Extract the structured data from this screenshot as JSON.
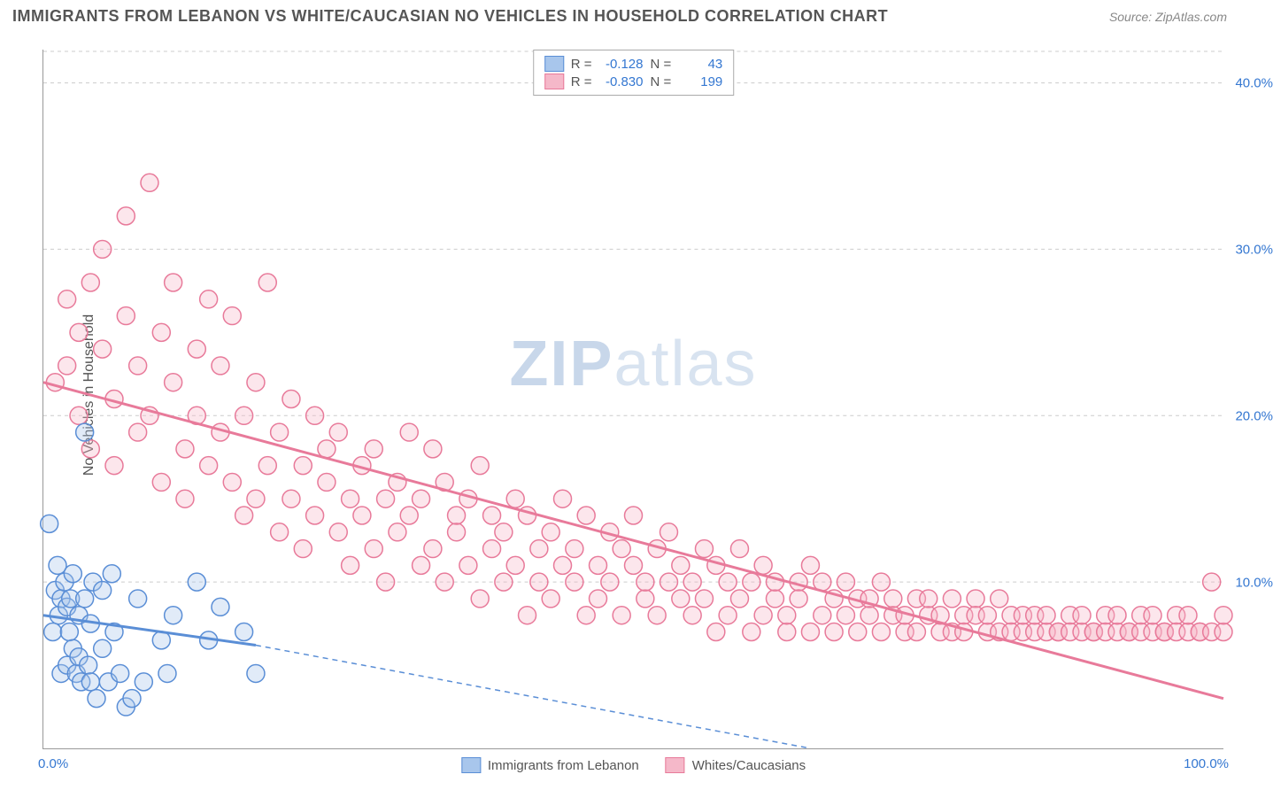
{
  "title": "IMMIGRANTS FROM LEBANON VS WHITE/CAUCASIAN NO VEHICLES IN HOUSEHOLD CORRELATION CHART",
  "source": "Source: ZipAtlas.com",
  "watermark_zip": "ZIP",
  "watermark_atlas": "atlas",
  "chart": {
    "type": "scatter-with-trendlines",
    "ylabel": "No Vehicles in Household",
    "xlim": [
      0,
      100
    ],
    "ylim": [
      0,
      42
    ],
    "y_ticks": [
      10,
      20,
      30,
      40
    ],
    "y_tick_labels": [
      "10.0%",
      "20.0%",
      "30.0%",
      "40.0%"
    ],
    "x_tick_labels": {
      "left": "0.0%",
      "right": "100.0%"
    },
    "grid_color": "#cccccc",
    "background_color": "#ffffff",
    "axis_color": "#999999",
    "tick_label_color": "#3477d1",
    "label_color": "#555555",
    "marker_radius": 10,
    "marker_stroke_width": 1.5,
    "marker_fill_opacity": 0.35,
    "trendline_width": 3,
    "series": {
      "lebanon": {
        "label": "Immigrants from Lebanon",
        "color_stroke": "#5a8ed6",
        "color_fill": "#a8c6ec",
        "R": "-0.128",
        "N": "43",
        "trend_start": {
          "x": 0,
          "y": 8.0
        },
        "trend_solid_end": {
          "x": 18,
          "y": 6.2
        },
        "trend_dash_end": {
          "x": 65,
          "y": 0
        },
        "points": [
          [
            0.5,
            13.5
          ],
          [
            0.8,
            7.0
          ],
          [
            1.0,
            9.5
          ],
          [
            1.2,
            11.0
          ],
          [
            1.3,
            8.0
          ],
          [
            1.5,
            9.0
          ],
          [
            1.5,
            4.5
          ],
          [
            1.8,
            10.0
          ],
          [
            2.0,
            8.5
          ],
          [
            2.0,
            5.0
          ],
          [
            2.2,
            7.0
          ],
          [
            2.3,
            9.0
          ],
          [
            2.5,
            6.0
          ],
          [
            2.5,
            10.5
          ],
          [
            2.8,
            4.5
          ],
          [
            3.0,
            5.5
          ],
          [
            3.0,
            8.0
          ],
          [
            3.2,
            4.0
          ],
          [
            3.5,
            19.0
          ],
          [
            3.5,
            9.0
          ],
          [
            3.8,
            5.0
          ],
          [
            4.0,
            7.5
          ],
          [
            4.0,
            4.0
          ],
          [
            4.2,
            10.0
          ],
          [
            4.5,
            3.0
          ],
          [
            5.0,
            6.0
          ],
          [
            5.0,
            9.5
          ],
          [
            5.5,
            4.0
          ],
          [
            5.8,
            10.5
          ],
          [
            6.0,
            7.0
          ],
          [
            6.5,
            4.5
          ],
          [
            7.0,
            2.5
          ],
          [
            7.5,
            3.0
          ],
          [
            8.0,
            9.0
          ],
          [
            8.5,
            4.0
          ],
          [
            10.0,
            6.5
          ],
          [
            10.5,
            4.5
          ],
          [
            11.0,
            8.0
          ],
          [
            13.0,
            10.0
          ],
          [
            14.0,
            6.5
          ],
          [
            15.0,
            8.5
          ],
          [
            17.0,
            7.0
          ],
          [
            18.0,
            4.5
          ]
        ]
      },
      "whites": {
        "label": "Whites/Caucasians",
        "color_stroke": "#e87a9a",
        "color_fill": "#f5b8c9",
        "R": "-0.830",
        "N": "199",
        "trend_start": {
          "x": 0,
          "y": 22.0
        },
        "trend_end": {
          "x": 100,
          "y": 3.0
        },
        "points": [
          [
            1,
            22
          ],
          [
            2,
            27
          ],
          [
            2,
            23
          ],
          [
            3,
            20
          ],
          [
            3,
            25
          ],
          [
            4,
            28
          ],
          [
            4,
            18
          ],
          [
            5,
            24
          ],
          [
            5,
            30
          ],
          [
            6,
            21
          ],
          [
            6,
            17
          ],
          [
            7,
            26
          ],
          [
            7,
            32
          ],
          [
            8,
            23
          ],
          [
            8,
            19
          ],
          [
            9,
            34
          ],
          [
            9,
            20
          ],
          [
            10,
            25
          ],
          [
            10,
            16
          ],
          [
            11,
            22
          ],
          [
            11,
            28
          ],
          [
            12,
            18
          ],
          [
            12,
            15
          ],
          [
            13,
            24
          ],
          [
            13,
            20
          ],
          [
            14,
            27
          ],
          [
            14,
            17
          ],
          [
            15,
            19
          ],
          [
            15,
            23
          ],
          [
            16,
            16
          ],
          [
            16,
            26
          ],
          [
            17,
            14
          ],
          [
            17,
            20
          ],
          [
            18,
            22
          ],
          [
            18,
            15
          ],
          [
            19,
            28
          ],
          [
            19,
            17
          ],
          [
            20,
            13
          ],
          [
            20,
            19
          ],
          [
            21,
            21
          ],
          [
            21,
            15
          ],
          [
            22,
            17
          ],
          [
            22,
            12
          ],
          [
            23,
            20
          ],
          [
            23,
            14
          ],
          [
            24,
            16
          ],
          [
            24,
            18
          ],
          [
            25,
            13
          ],
          [
            25,
            19
          ],
          [
            26,
            15
          ],
          [
            26,
            11
          ],
          [
            27,
            17
          ],
          [
            27,
            14
          ],
          [
            28,
            12
          ],
          [
            28,
            18
          ],
          [
            29,
            15
          ],
          [
            29,
            10
          ],
          [
            30,
            16
          ],
          [
            30,
            13
          ],
          [
            31,
            14
          ],
          [
            31,
            19
          ],
          [
            32,
            11
          ],
          [
            32,
            15
          ],
          [
            33,
            18
          ],
          [
            33,
            12
          ],
          [
            34,
            10
          ],
          [
            34,
            16
          ],
          [
            35,
            13
          ],
          [
            35,
            14
          ],
          [
            36,
            15
          ],
          [
            36,
            11
          ],
          [
            37,
            9
          ],
          [
            37,
            17
          ],
          [
            38,
            12
          ],
          [
            38,
            14
          ],
          [
            39,
            10
          ],
          [
            39,
            13
          ],
          [
            40,
            15
          ],
          [
            40,
            11
          ],
          [
            41,
            8
          ],
          [
            41,
            14
          ],
          [
            42,
            12
          ],
          [
            42,
            10
          ],
          [
            43,
            13
          ],
          [
            43,
            9
          ],
          [
            44,
            11
          ],
          [
            44,
            15
          ],
          [
            45,
            10
          ],
          [
            45,
            12
          ],
          [
            46,
            8
          ],
          [
            46,
            14
          ],
          [
            47,
            11
          ],
          [
            47,
            9
          ],
          [
            48,
            13
          ],
          [
            48,
            10
          ],
          [
            49,
            12
          ],
          [
            49,
            8
          ],
          [
            50,
            11
          ],
          [
            50,
            14
          ],
          [
            51,
            9
          ],
          [
            51,
            10
          ],
          [
            52,
            12
          ],
          [
            52,
            8
          ],
          [
            53,
            10
          ],
          [
            53,
            13
          ],
          [
            54,
            9
          ],
          [
            54,
            11
          ],
          [
            55,
            8
          ],
          [
            55,
            10
          ],
          [
            56,
            12
          ],
          [
            56,
            9
          ],
          [
            57,
            7
          ],
          [
            57,
            11
          ],
          [
            58,
            10
          ],
          [
            58,
            8
          ],
          [
            59,
            9
          ],
          [
            59,
            12
          ],
          [
            60,
            10
          ],
          [
            60,
            7
          ],
          [
            61,
            8
          ],
          [
            61,
            11
          ],
          [
            62,
            9
          ],
          [
            62,
            10
          ],
          [
            63,
            7
          ],
          [
            63,
            8
          ],
          [
            64,
            10
          ],
          [
            64,
            9
          ],
          [
            65,
            11
          ],
          [
            65,
            7
          ],
          [
            66,
            8
          ],
          [
            66,
            10
          ],
          [
            67,
            9
          ],
          [
            67,
            7
          ],
          [
            68,
            8
          ],
          [
            68,
            10
          ],
          [
            69,
            9
          ],
          [
            69,
            7
          ],
          [
            70,
            8
          ],
          [
            70,
            9
          ],
          [
            71,
            10
          ],
          [
            71,
            7
          ],
          [
            72,
            8
          ],
          [
            72,
            9
          ],
          [
            73,
            7
          ],
          [
            73,
            8
          ],
          [
            74,
            9
          ],
          [
            74,
            7
          ],
          [
            75,
            8
          ],
          [
            75,
            9
          ],
          [
            76,
            7
          ],
          [
            76,
            8
          ],
          [
            77,
            9
          ],
          [
            77,
            7
          ],
          [
            78,
            8
          ],
          [
            78,
            7
          ],
          [
            79,
            9
          ],
          [
            79,
            8
          ],
          [
            80,
            7
          ],
          [
            80,
            8
          ],
          [
            81,
            7
          ],
          [
            81,
            9
          ],
          [
            82,
            8
          ],
          [
            82,
            7
          ],
          [
            83,
            7
          ],
          [
            83,
            8
          ],
          [
            84,
            7
          ],
          [
            84,
            8
          ],
          [
            85,
            7
          ],
          [
            85,
            8
          ],
          [
            86,
            7
          ],
          [
            86,
            7
          ],
          [
            87,
            8
          ],
          [
            87,
            7
          ],
          [
            88,
            7
          ],
          [
            88,
            8
          ],
          [
            89,
            7
          ],
          [
            89,
            7
          ],
          [
            90,
            8
          ],
          [
            90,
            7
          ],
          [
            91,
            7
          ],
          [
            91,
            8
          ],
          [
            92,
            7
          ],
          [
            92,
            7
          ],
          [
            93,
            8
          ],
          [
            93,
            7
          ],
          [
            94,
            7
          ],
          [
            94,
            8
          ],
          [
            95,
            7
          ],
          [
            95,
            7
          ],
          [
            96,
            8
          ],
          [
            96,
            7
          ],
          [
            97,
            7
          ],
          [
            97,
            8
          ],
          [
            98,
            7
          ],
          [
            98,
            7
          ],
          [
            99,
            10
          ],
          [
            99,
            7
          ],
          [
            100,
            7
          ],
          [
            100,
            8
          ]
        ]
      }
    },
    "legend_top": {
      "rows": [
        {
          "swatch": "lebanon",
          "R_label": "R =",
          "N_label": "N ="
        },
        {
          "swatch": "whites",
          "R_label": "R =",
          "N_label": "N ="
        }
      ]
    }
  }
}
